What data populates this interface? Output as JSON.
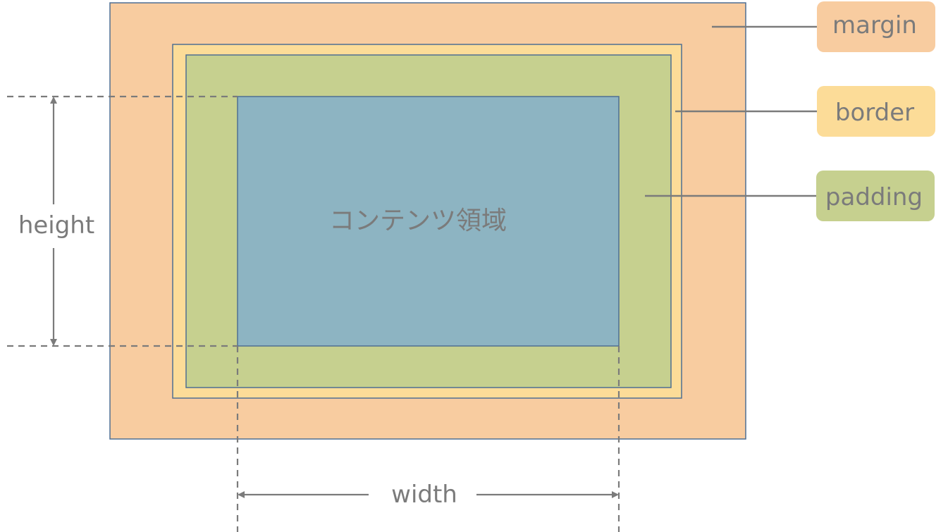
{
  "diagram": {
    "content_label": "コンテンツ領域",
    "height_label": "height",
    "width_label": "width"
  },
  "legend": {
    "margin": {
      "label": "margin",
      "color": "#F8CCA0"
    },
    "border": {
      "label": "border",
      "color": "#FCDC98"
    },
    "padding": {
      "label": "padding",
      "color": "#C6D08F"
    }
  },
  "colors": {
    "content": "#8DB4C2",
    "outline": "#4F6F93",
    "annotation": "#7B7B7B"
  }
}
